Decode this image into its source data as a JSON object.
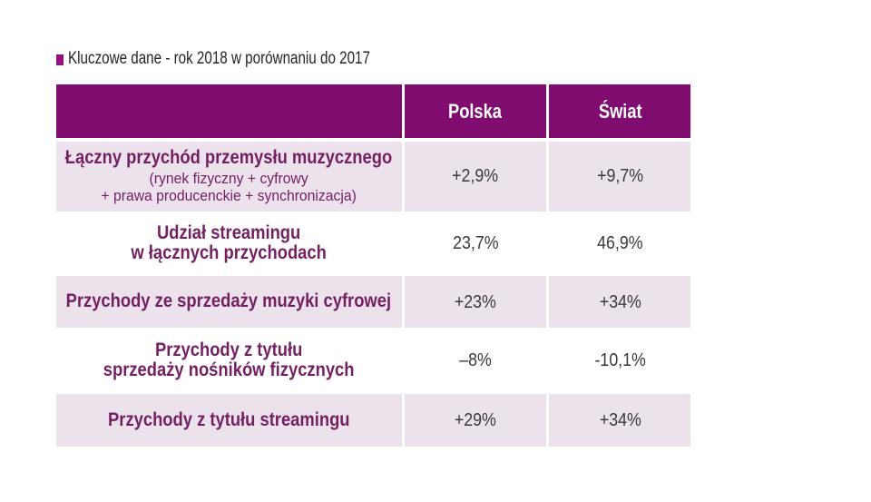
{
  "colors": {
    "background": "#ffffff",
    "header_bg": "#7f0c6e",
    "shaded_row_bg": "#ebe2eb",
    "white_row_bg": "#ffffff",
    "label_text": "#751f63",
    "value_text": "#3a3a3c",
    "header_text": "#ffffff",
    "title_text": "#242427",
    "title_bullet": "#970e7f",
    "divider": "#ffffff"
  },
  "title": {
    "bullet_icon": "square-bullet",
    "text": "Kluczowe dane - rok 2018 w porównaniu do 2017"
  },
  "chart_data": {
    "type": "table",
    "title": "Kluczowe dane - rok 2018 w porównaniu do 2017",
    "columns": [
      "",
      "Polska",
      "Świat"
    ],
    "rows": [
      {
        "label": "Łączny przychód przemysłu muzycznego",
        "label_note": "(rynek fizyczny + cyfrowy\n+ prawa producenckie + synchronizacja)",
        "polska": "+2,9%",
        "swiat": "+9,7%",
        "shaded": true
      },
      {
        "label": "Udział streamingu\nw łącznych przychodach",
        "label_note": "",
        "polska": "23,7%",
        "swiat": "46,9%",
        "shaded": false
      },
      {
        "label": "Przychody ze sprzedaży muzyki cyfrowej",
        "label_note": "",
        "polska": "+23%",
        "swiat": "+34%",
        "shaded": true
      },
      {
        "label": "Przychody z tytułu\nsprzedaży nośników fizycznych",
        "label_note": "",
        "polska": "–8%",
        "swiat": "-10,1%",
        "shaded": false
      },
      {
        "label": "Przychody z tytułu streamingu",
        "label_note": "",
        "polska": "+29%",
        "swiat": "+34%",
        "shaded": true
      }
    ]
  },
  "table": {
    "header": {
      "col_label": "",
      "col_polska": "Polska",
      "col_swiat": "Świat"
    }
  }
}
